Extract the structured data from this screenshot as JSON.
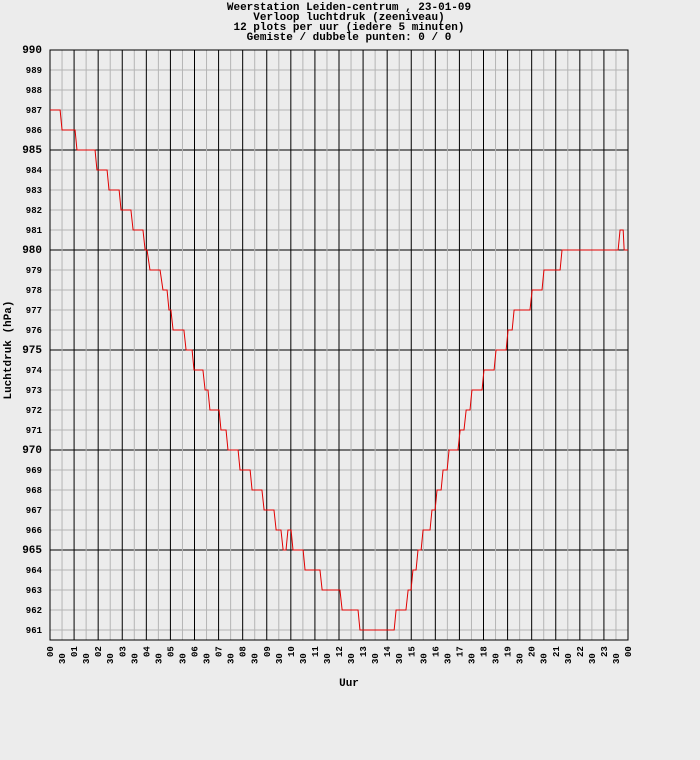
{
  "chart_data": {
    "type": "line",
    "title": "Weerstation Leiden-centrum , 23-01-09",
    "subtitles": [
      "Verloop luchtdruk (zeeniveau)",
      "12 plots per uur (iedere 5 minuten)",
      "Gemiste / dubbele punten: 0 / 0"
    ],
    "x_label": "Uur",
    "y_label": "Luchtdruk (hPa)",
    "xlim": [
      0,
      24
    ],
    "ylim": [
      960.5,
      990
    ],
    "grid": true,
    "xticks": [
      {
        "value": 0,
        "label": "00"
      },
      {
        "value": 0.5,
        "label": "30"
      },
      {
        "value": 1,
        "label": "01"
      },
      {
        "value": 1.5,
        "label": "30"
      },
      {
        "value": 2,
        "label": "02"
      },
      {
        "value": 2.5,
        "label": "30"
      },
      {
        "value": 3,
        "label": "03"
      },
      {
        "value": 3.5,
        "label": "30"
      },
      {
        "value": 4,
        "label": "04"
      },
      {
        "value": 4.5,
        "label": "30"
      },
      {
        "value": 5,
        "label": "05"
      },
      {
        "value": 5.5,
        "label": "30"
      },
      {
        "value": 6,
        "label": "06"
      },
      {
        "value": 6.5,
        "label": "30"
      },
      {
        "value": 7,
        "label": "07"
      },
      {
        "value": 7.5,
        "label": "30"
      },
      {
        "value": 8,
        "label": "08"
      },
      {
        "value": 8.5,
        "label": "30"
      },
      {
        "value": 9,
        "label": "09"
      },
      {
        "value": 9.5,
        "label": "30"
      },
      {
        "value": 10,
        "label": "10"
      },
      {
        "value": 10.5,
        "label": "30"
      },
      {
        "value": 11,
        "label": "11"
      },
      {
        "value": 11.5,
        "label": "30"
      },
      {
        "value": 12,
        "label": "12"
      },
      {
        "value": 12.5,
        "label": "30"
      },
      {
        "value": 13,
        "label": "13"
      },
      {
        "value": 13.5,
        "label": "30"
      },
      {
        "value": 14,
        "label": "14"
      },
      {
        "value": 14.5,
        "label": "30"
      },
      {
        "value": 15,
        "label": "15"
      },
      {
        "value": 15.5,
        "label": "30"
      },
      {
        "value": 16,
        "label": "16"
      },
      {
        "value": 16.5,
        "label": "30"
      },
      {
        "value": 17,
        "label": "17"
      },
      {
        "value": 17.5,
        "label": "30"
      },
      {
        "value": 18,
        "label": "18"
      },
      {
        "value": 18.5,
        "label": "30"
      },
      {
        "value": 19,
        "label": "19"
      },
      {
        "value": 19.5,
        "label": "30"
      },
      {
        "value": 20,
        "label": "20"
      },
      {
        "value": 20.5,
        "label": "30"
      },
      {
        "value": 21,
        "label": "21"
      },
      {
        "value": 21.5,
        "label": "30"
      },
      {
        "value": 22,
        "label": "22"
      },
      {
        "value": 22.5,
        "label": "30"
      },
      {
        "value": 23,
        "label": "23"
      },
      {
        "value": 23.5,
        "label": "30"
      },
      {
        "value": 24,
        "label": "00"
      }
    ],
    "yticks": [
      961,
      962,
      963,
      964,
      965,
      966,
      967,
      968,
      969,
      970,
      971,
      972,
      973,
      974,
      975,
      976,
      977,
      978,
      979,
      980,
      981,
      982,
      983,
      984,
      985,
      986,
      987,
      988,
      989,
      990
    ],
    "color": "#e00000",
    "x": [
      0,
      0.42,
      0.5,
      1.04,
      1.12,
      1.87,
      1.95,
      2.37,
      2.45,
      2.87,
      2.95,
      3.36,
      3.45,
      3.86,
      3.95,
      4.03,
      4.15,
      4.57,
      4.69,
      4.86,
      4.94,
      5.02,
      5.11,
      5.56,
      5.65,
      5.9,
      5.98,
      6.35,
      6.44,
      6.56,
      6.64,
      7.02,
      7.1,
      7.31,
      7.39,
      7.81,
      7.89,
      8.31,
      8.39,
      8.8,
      8.89,
      9.3,
      9.39,
      9.59,
      9.68,
      9.8,
      9.88,
      10.01,
      10.09,
      10.51,
      10.59,
      11.21,
      11.3,
      12.04,
      12.13,
      12.79,
      12.87,
      14.29,
      14.37,
      14.78,
      14.87,
      14.99,
      15.07,
      15.2,
      15.28,
      15.41,
      15.49,
      15.78,
      15.86,
      15.99,
      16.07,
      16.24,
      16.32,
      16.49,
      16.57,
      16.94,
      17.03,
      17.19,
      17.28,
      17.44,
      17.52,
      17.94,
      18.02,
      18.44,
      18.52,
      18.94,
      19.02,
      19.19,
      19.27,
      19.93,
      20.02,
      20.43,
      20.51,
      21.18,
      21.26,
      23.59,
      23.67,
      23.8,
      23.84,
      24
    ],
    "values": [
      987,
      987,
      986,
      986,
      985,
      985,
      984,
      984,
      983,
      983,
      982,
      982,
      981,
      981,
      980,
      980,
      979,
      979,
      978,
      978,
      977,
      977,
      976,
      976,
      975,
      975,
      974,
      974,
      973,
      973,
      972,
      972,
      971,
      971,
      970,
      970,
      969,
      969,
      968,
      968,
      967,
      967,
      966,
      966,
      965,
      965,
      966,
      966,
      965,
      965,
      964,
      964,
      963,
      963,
      962,
      962,
      961,
      961,
      962,
      962,
      963,
      963,
      964,
      964,
      965,
      965,
      966,
      966,
      967,
      967,
      968,
      968,
      969,
      969,
      970,
      970,
      971,
      971,
      972,
      972,
      973,
      973,
      974,
      974,
      975,
      975,
      976,
      976,
      977,
      977,
      978,
      978,
      979,
      979,
      980,
      980,
      981,
      981,
      980,
      980
    ]
  }
}
